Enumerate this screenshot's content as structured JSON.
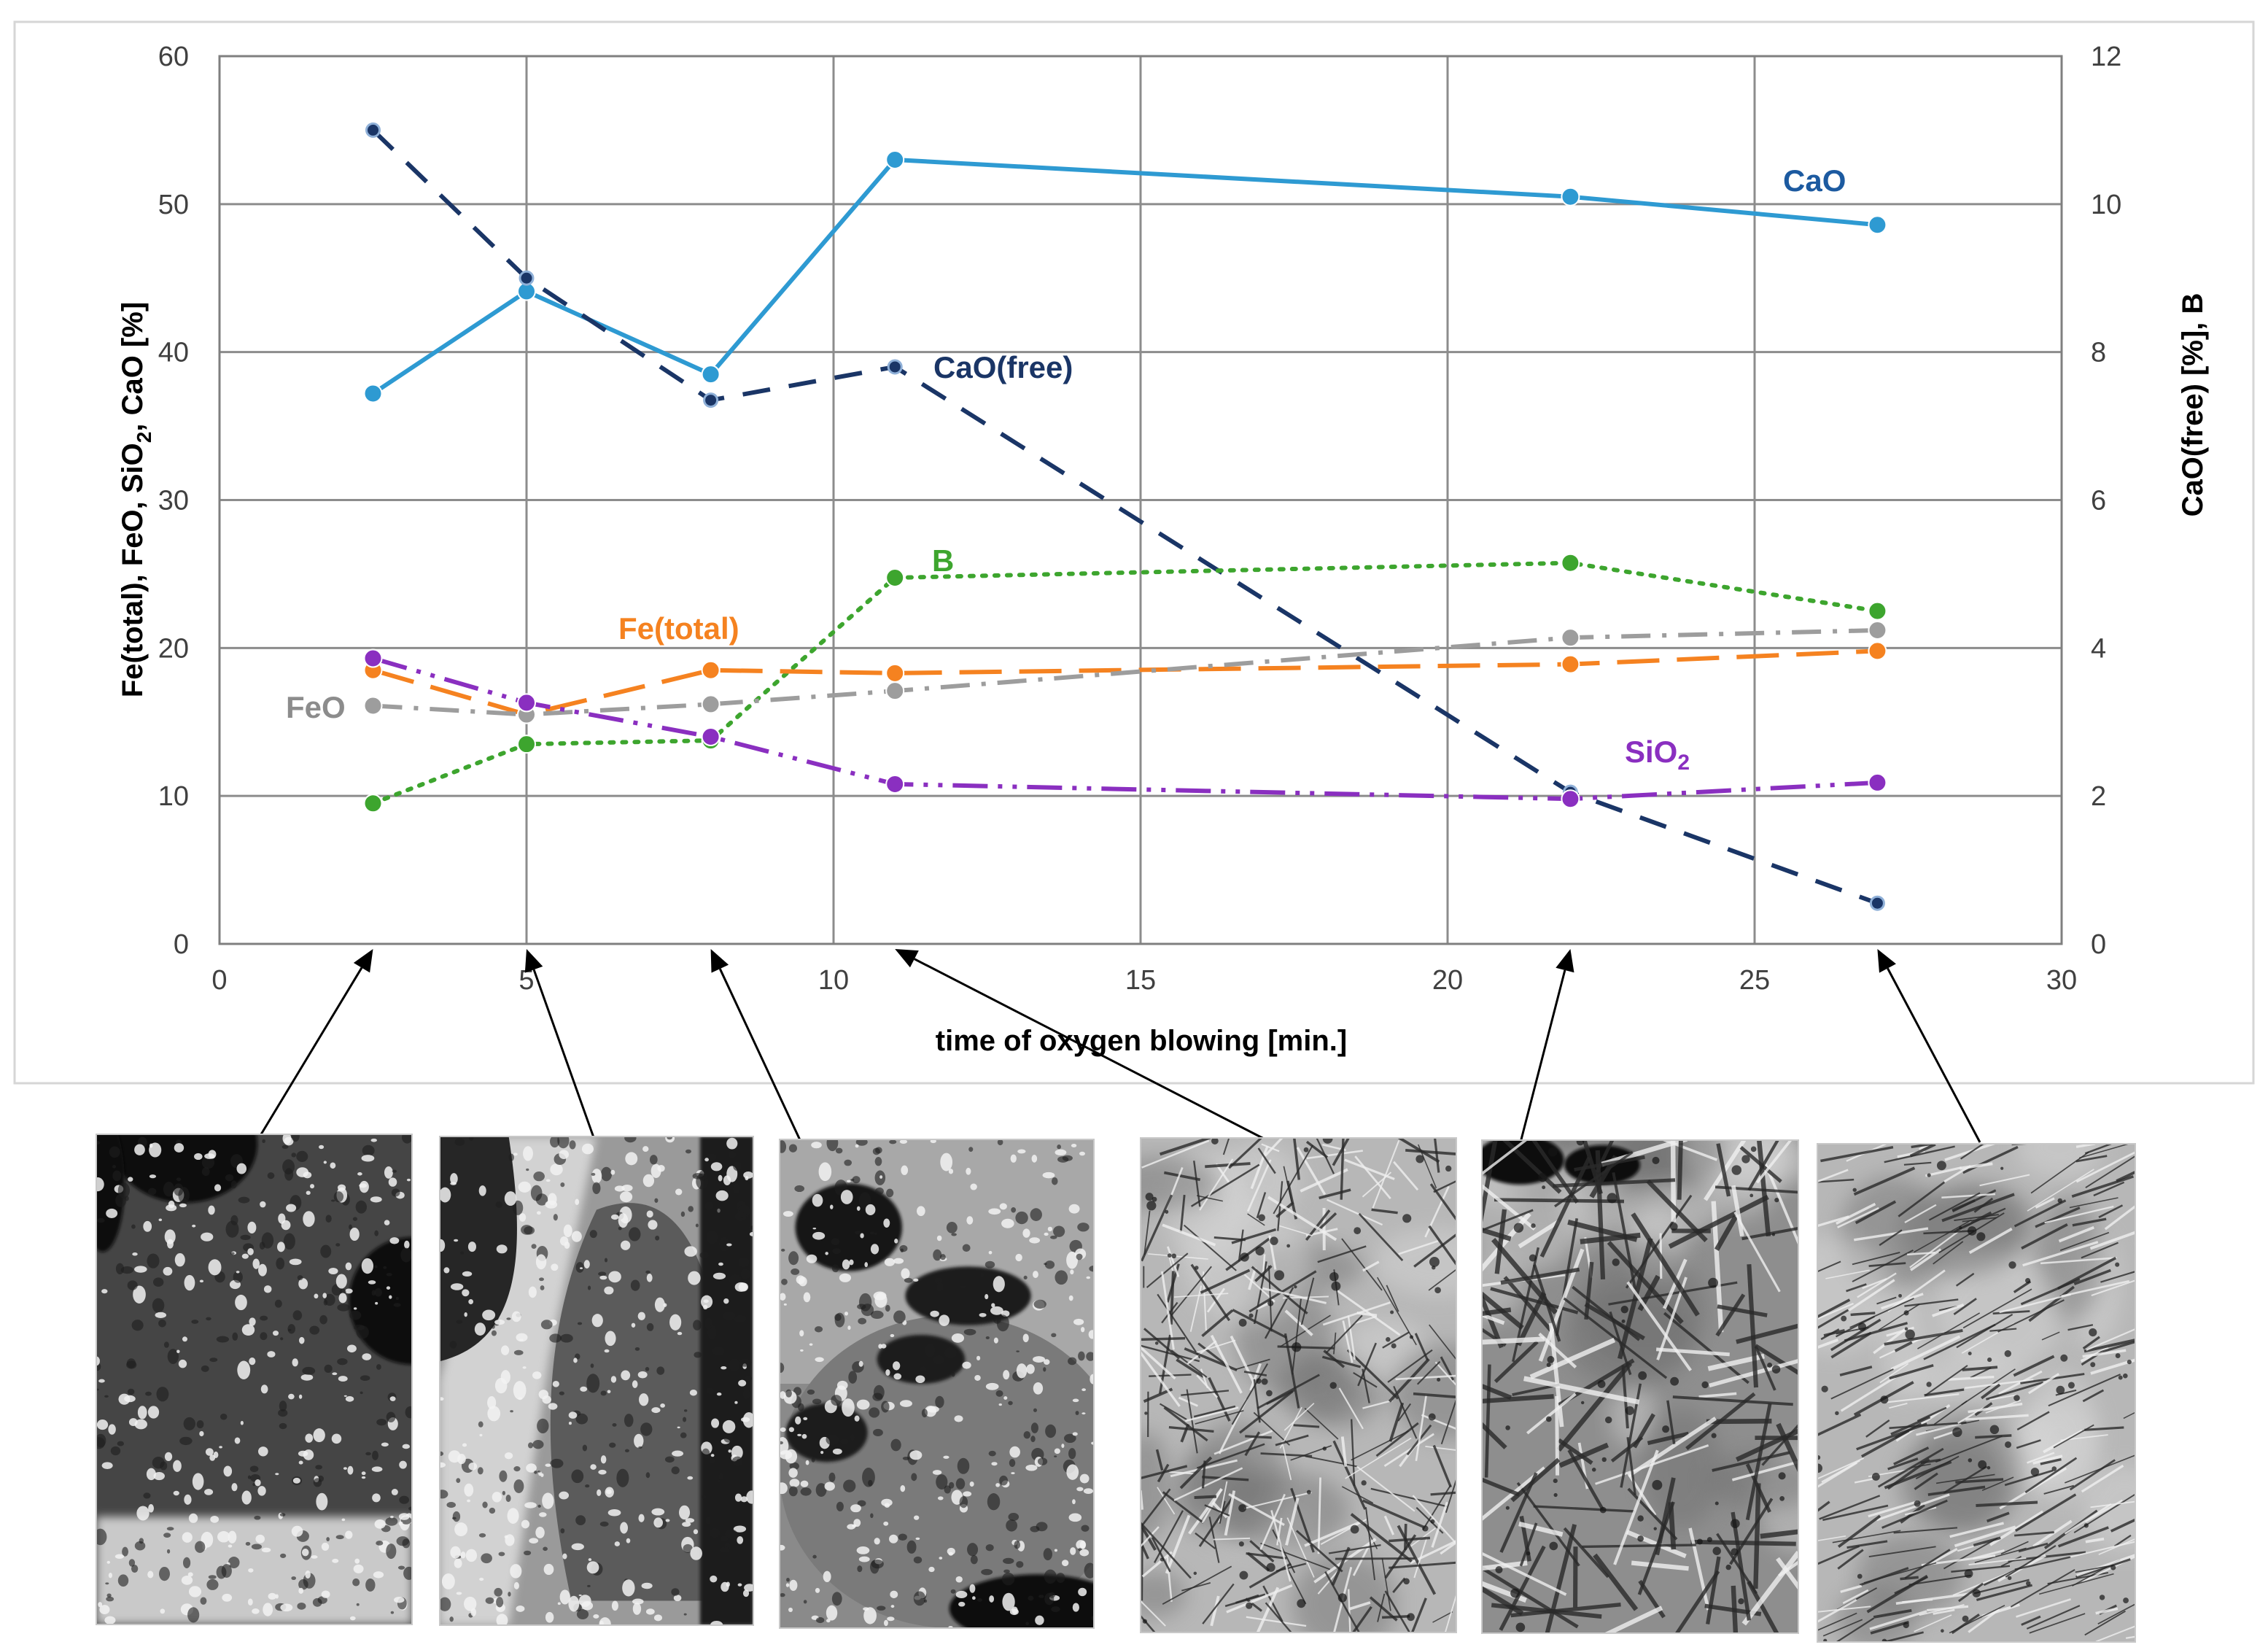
{
  "chart_data": {
    "type": "line",
    "title": "",
    "xlabel": "time of oxygen blowing [min.]",
    "ylabel_left": [
      "Fe(total), FeO, SiO",
      "2",
      ", CaO [%]"
    ],
    "ylabel_right": "CaO(free) [%], B",
    "xlim": [
      0,
      30
    ],
    "ylim_left": [
      0,
      60
    ],
    "ylim_right": [
      0,
      12
    ],
    "xticks": [
      "0",
      "5",
      "10",
      "15",
      "20",
      "25",
      "30"
    ],
    "yticks_left": [
      "0",
      "10",
      "20",
      "30",
      "40",
      "50",
      "60"
    ],
    "yticks_right": [
      "0",
      "2",
      "4",
      "6",
      "8",
      "10",
      "12"
    ],
    "grid": true,
    "legend": "inline labels",
    "series": [
      {
        "name": "CaO",
        "axis": "left",
        "color": "#2E9AD2",
        "dash": "none",
        "marker": "circle",
        "x": [
          2.5,
          5,
          8,
          11,
          22,
          27
        ],
        "y": [
          37.2,
          44.1,
          38.5,
          53.0,
          50.5,
          48.6
        ]
      },
      {
        "name": "CaO(free)",
        "axis": "right",
        "color": "#1A3566",
        "dash": "long",
        "marker": "small",
        "x": [
          2.5,
          5,
          8,
          11,
          22,
          27
        ],
        "y": [
          11.0,
          9.0,
          7.35,
          7.8,
          2.05,
          0.55
        ]
      },
      {
        "name": "B",
        "axis": "right",
        "color": "#3DA52E",
        "dash": "dot",
        "marker": "circle",
        "x": [
          2.5,
          5,
          8,
          11,
          22,
          27
        ],
        "y": [
          1.9,
          2.7,
          2.75,
          4.95,
          5.15,
          4.5
        ]
      },
      {
        "name": "Fe(total)",
        "axis": "left",
        "color": "#F58220",
        "dash": "dash",
        "marker": "circle",
        "x": [
          2.5,
          5,
          8,
          11,
          22,
          27
        ],
        "y": [
          18.5,
          15.5,
          18.5,
          18.3,
          18.9,
          19.8
        ]
      },
      {
        "name": "FeO",
        "axis": "left",
        "color": "#9D9D9D",
        "dash": "dashdot",
        "marker": "circle",
        "x": [
          2.5,
          5,
          8,
          11,
          22,
          27
        ],
        "y": [
          16.1,
          15.5,
          16.2,
          17.1,
          20.7,
          21.2
        ]
      },
      {
        "name": "SiO2",
        "axis": "left",
        "color": "#8A2FC0",
        "dash": "dashdotdot",
        "marker": "circle",
        "x": [
          2.5,
          5,
          8,
          11,
          22,
          27
        ],
        "y": [
          19.3,
          16.3,
          14.0,
          10.8,
          9.8,
          10.9
        ]
      }
    ],
    "labels": [
      {
        "series": "CaO",
        "text": "CaO"
      },
      {
        "series": "CaO(free)",
        "text": "CaO(free)"
      },
      {
        "series": "B",
        "text": "B"
      },
      {
        "series": "Fe(total)",
        "text": "Fe(total)"
      },
      {
        "series": "FeO",
        "text": "FeO"
      },
      {
        "series": "SiO2",
        "text": "SiO",
        "sub": "2"
      }
    ],
    "micrograph_times": [
      2.5,
      5,
      8,
      11,
      22,
      27
    ]
  },
  "micrographs": [
    {
      "texture": "spotty"
    },
    {
      "texture": "spotty-light"
    },
    {
      "texture": "spotty-gray"
    },
    {
      "texture": "needles"
    },
    {
      "texture": "needles-coarse"
    },
    {
      "texture": "needles-aligned"
    }
  ]
}
